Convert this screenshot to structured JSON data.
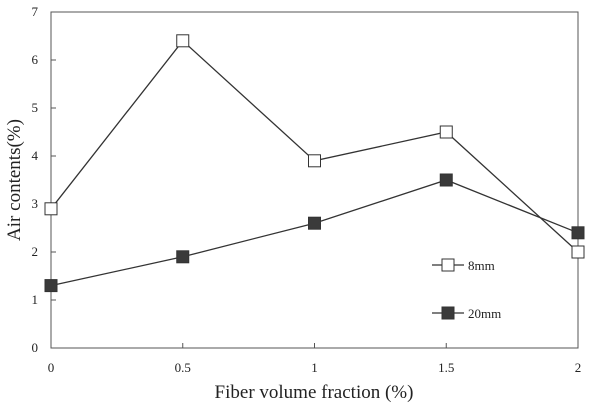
{
  "chart_data": {
    "type": "line",
    "title": "",
    "xlabel": "Fiber volume fraction (%)",
    "ylabel": "Air contents(%)",
    "x": [
      0,
      0.5,
      1,
      1.5,
      2
    ],
    "x_tick_labels": [
      "0",
      "0.5",
      "1",
      "1.5",
      "2"
    ],
    "xlim": [
      0,
      2
    ],
    "y_tick_labels": [
      "0",
      "1",
      "2",
      "3",
      "4",
      "5",
      "6",
      "7"
    ],
    "ylim": [
      0,
      7
    ],
    "grid": false,
    "legend_placement": "right",
    "series": [
      {
        "name": "8mm",
        "values": [
          2.9,
          6.4,
          3.9,
          4.5,
          2.0
        ],
        "marker": "open-square",
        "marker_fill": "#ffffff",
        "line_color": "#333333"
      },
      {
        "name": "20mm",
        "values": [
          1.3,
          1.9,
          2.6,
          3.5,
          2.4
        ],
        "marker": "filled-square",
        "marker_fill": "#3a3a3a",
        "line_color": "#333333"
      }
    ]
  }
}
